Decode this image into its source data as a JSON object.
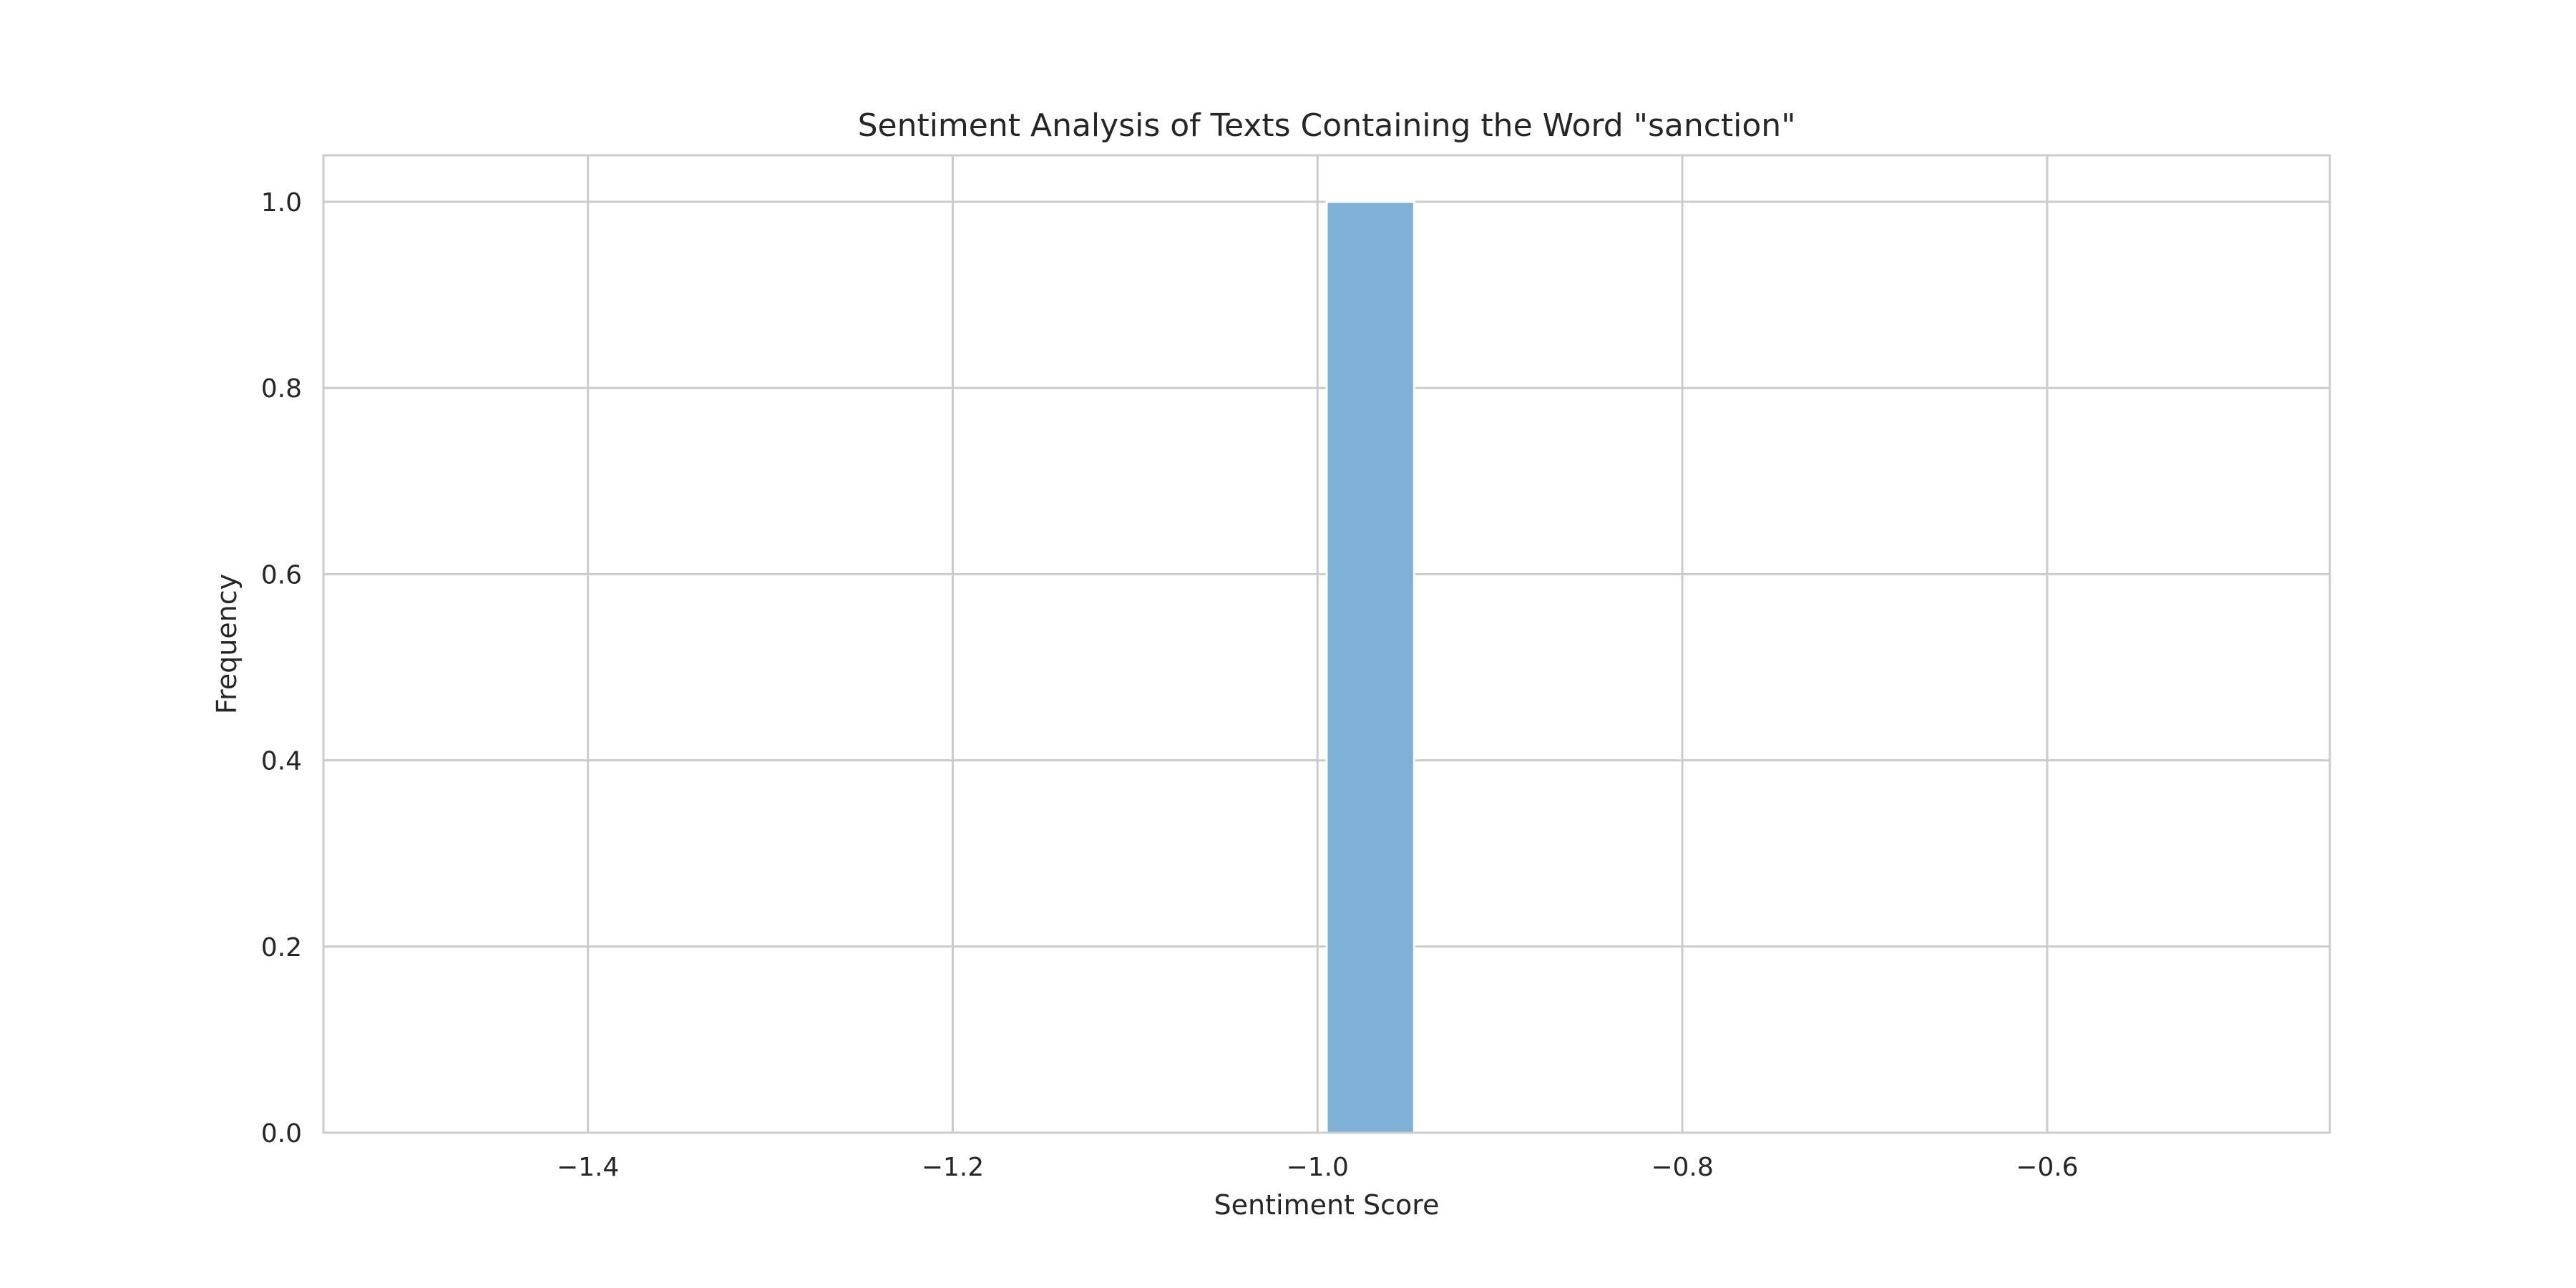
{
  "chart_data": {
    "type": "bar",
    "title": "Sentiment Analysis of Texts Containing the Word \"sanction\"",
    "xlabel": "Sentiment Score",
    "ylabel": "Frequency",
    "xlim": [
      -1.545,
      -0.445
    ],
    "ylim": [
      0,
      1.05
    ],
    "xticks": [
      -1.4,
      -1.2,
      -1.0,
      -0.8,
      -0.6
    ],
    "xtick_labels": [
      "−1.4",
      "−1.2",
      "−1.0",
      "−0.8",
      "−0.6"
    ],
    "yticks": [
      0.0,
      0.2,
      0.4,
      0.6,
      0.8,
      1.0
    ],
    "ytick_labels": [
      "0.0",
      "0.2",
      "0.4",
      "0.6",
      "0.8",
      "1.0"
    ],
    "grid": true,
    "bars": [
      {
        "x_start": -0.995,
        "x_end": -0.947,
        "value": 1.0
      }
    ],
    "colors": {
      "bar": "#7fb1d6",
      "grid": "#cccccc",
      "text": "#262626"
    }
  }
}
